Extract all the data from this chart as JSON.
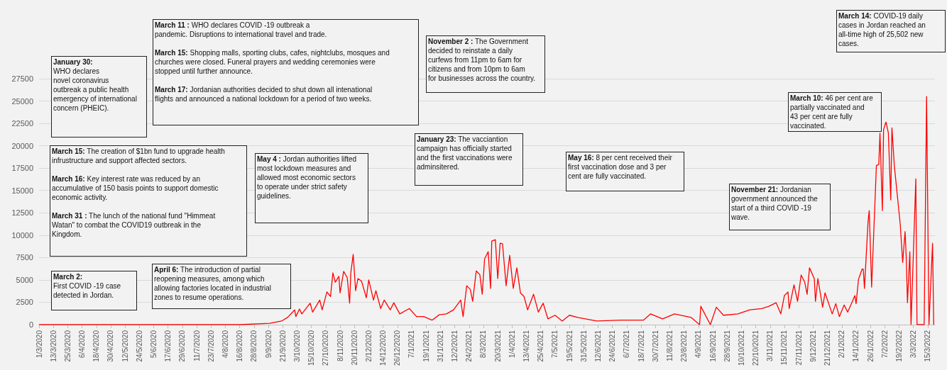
{
  "chart_data": {
    "type": "line",
    "color": "#ff0000",
    "grid": "y",
    "x": [
      "2020-03-01",
      "2020-08-16",
      "2020-09-10",
      "2020-09-20",
      "2020-09-25",
      "2020-10-01",
      "2020-10-02",
      "2020-10-05",
      "2020-10-07",
      "2020-10-14",
      "2020-10-16",
      "2020-10-22",
      "2020-10-24",
      "2020-10-28",
      "2020-10-31",
      "2020-11-02",
      "2020-11-04",
      "2020-11-07",
      "2020-11-08",
      "2020-11-11",
      "2020-11-14",
      "2020-11-16",
      "2020-11-17",
      "2020-11-19",
      "2020-11-21",
      "2020-11-23",
      "2020-11-26",
      "2020-11-30",
      "2020-12-02",
      "2020-12-06",
      "2020-12-08",
      "2020-12-12",
      "2020-12-15",
      "2020-12-20",
      "2020-12-23",
      "2020-12-28",
      "2021-01-05",
      "2021-01-11",
      "2021-01-17",
      "2021-01-24",
      "2021-01-30",
      "2021-02-05",
      "2021-02-11",
      "2021-02-17",
      "2021-02-19",
      "2021-02-22",
      "2021-02-25",
      "2021-02-27",
      "2021-03-02",
      "2021-03-05",
      "2021-03-07",
      "2021-03-09",
      "2021-03-12",
      "2021-03-14",
      "2021-03-15",
      "2021-03-18",
      "2021-03-20",
      "2021-03-22",
      "2021-03-24",
      "2021-03-27",
      "2021-03-30",
      "2021-04-02",
      "2021-04-05",
      "2021-04-08",
      "2021-04-11",
      "2021-04-14",
      "2021-04-19",
      "2021-04-23",
      "2021-04-27",
      "2021-05-01",
      "2021-05-07",
      "2021-05-13",
      "2021-05-19",
      "2021-05-26",
      "2021-06-11",
      "2021-07-01",
      "2021-07-20",
      "2021-07-26",
      "2021-08-05",
      "2021-08-15",
      "2021-08-29",
      "2021-09-05",
      "2021-09-06",
      "2021-09-14",
      "2021-09-19",
      "2021-09-25",
      "2021-10-07",
      "2021-10-17",
      "2021-10-27",
      "2021-11-02",
      "2021-11-08",
      "2021-11-12",
      "2021-11-15",
      "2021-11-18",
      "2021-11-19",
      "2021-11-23",
      "2021-11-26",
      "2021-11-29",
      "2021-12-02",
      "2021-12-04",
      "2021-12-06",
      "2021-12-10",
      "2021-12-11",
      "2021-12-13",
      "2021-12-17",
      "2021-12-19",
      "2021-12-25",
      "2021-12-28",
      "2021-12-31",
      "2022-01-04",
      "2022-01-07",
      "2022-01-13",
      "2022-01-14",
      "2022-01-16",
      "2022-01-19",
      "2022-01-20",
      "2022-01-21",
      "2022-01-24",
      "2022-01-25",
      "2022-01-27",
      "2022-01-31",
      "2022-02-02",
      "2022-02-03",
      "2022-02-05",
      "2022-02-06",
      "2022-02-08",
      "2022-02-10",
      "2022-02-12",
      "2022-02-13",
      "2022-02-15",
      "2022-02-20",
      "2022-02-22",
      "2022-02-24",
      "2022-02-25",
      "2022-02-26",
      "2022-02-28",
      "2022-03-01",
      "2022-03-05",
      "2022-03-06",
      "2022-03-12",
      "2022-03-14",
      "2022-03-16",
      "2022-03-19",
      "2022-03-20"
    ],
    "values": [
      0,
      0,
      150,
      400,
      800,
      1650,
      900,
      1750,
      1200,
      2400,
      1400,
      2750,
      1650,
      3650,
      3150,
      5800,
      4750,
      5400,
      3550,
      5950,
      5250,
      2400,
      5800,
      7850,
      3800,
      5150,
      4850,
      3000,
      5000,
      2750,
      3800,
      1800,
      2750,
      1650,
      2450,
      1200,
      1800,
      900,
      900,
      500,
      1100,
      1200,
      1650,
      2750,
      900,
      4350,
      3950,
      2600,
      6000,
      5600,
      3400,
      7350,
      8150,
      4050,
      9350,
      9500,
      5150,
      9100,
      9050,
      4350,
      7750,
      4050,
      6350,
      3550,
      3150,
      1650,
      3400,
      1400,
      2400,
      650,
      1050,
      400,
      1050,
      800,
      400,
      500,
      500,
      1200,
      650,
      1200,
      800,
      0,
      2050,
      0,
      1950,
      1050,
      1200,
      1650,
      1800,
      2050,
      2450,
      1200,
      3250,
      3650,
      1800,
      4450,
      2600,
      5550,
      4750,
      3400,
      6350,
      5150,
      2600,
      5150,
      1950,
      3550,
      1200,
      2350,
      900,
      2200,
      1400,
      3250,
      2350,
      5050,
      6200,
      6200,
      4050,
      11500,
      12750,
      4200,
      17800,
      17900,
      21400,
      12750,
      21800,
      22650,
      21450,
      13950,
      22000,
      17800,
      11150,
      6950,
      10400,
      7500,
      2450,
      8150,
      0,
      16300,
      0,
      0,
      25502,
      0,
      9100,
      0
    ],
    "xlim": [
      "2020-03-01",
      "2022-03-21"
    ],
    "xticks": [
      {
        "value": "2020-03-01",
        "label": "1/3/2020"
      },
      {
        "value": "2020-03-13",
        "label": "13/3/2020"
      },
      {
        "value": "2020-03-25",
        "label": "25/3/2020"
      },
      {
        "value": "2020-04-06",
        "label": "6/4/2020"
      },
      {
        "value": "2020-04-18",
        "label": "18/4/2020"
      },
      {
        "value": "2020-04-30",
        "label": "30/4/2020"
      },
      {
        "value": "2020-05-12",
        "label": "12/5/2020"
      },
      {
        "value": "2020-05-24",
        "label": "24/5/2020"
      },
      {
        "value": "2020-06-05",
        "label": "5/6/2020"
      },
      {
        "value": "2020-06-17",
        "label": "17/6/2020"
      },
      {
        "value": "2020-06-29",
        "label": "29/6/2020"
      },
      {
        "value": "2020-07-11",
        "label": "11/7/2020"
      },
      {
        "value": "2020-07-23",
        "label": "23/7/2020"
      },
      {
        "value": "2020-08-04",
        "label": "4/8/2020"
      },
      {
        "value": "2020-08-16",
        "label": "16/8/2020"
      },
      {
        "value": "2020-08-28",
        "label": "28/8/2020"
      },
      {
        "value": "2020-09-09",
        "label": "9/9/2020"
      },
      {
        "value": "2020-09-21",
        "label": "21/9/2020"
      },
      {
        "value": "2020-10-03",
        "label": "3/10/2020"
      },
      {
        "value": "2020-10-15",
        "label": "15/10/2020"
      },
      {
        "value": "2020-10-27",
        "label": "27/10/2020"
      },
      {
        "value": "2020-11-08",
        "label": "8/11/2020"
      },
      {
        "value": "2020-11-20",
        "label": "20/11/2020"
      },
      {
        "value": "2020-12-02",
        "label": "2/12/2020"
      },
      {
        "value": "2020-12-14",
        "label": "14/12/2020"
      },
      {
        "value": "2020-12-26",
        "label": "26/12/2020"
      },
      {
        "value": "2021-01-07",
        "label": "7/1/2021"
      },
      {
        "value": "2021-01-19",
        "label": "19/1/2021"
      },
      {
        "value": "2021-01-31",
        "label": "31/1/2021"
      },
      {
        "value": "2021-02-12",
        "label": "12/2/2021"
      },
      {
        "value": "2021-02-24",
        "label": "24/2/2021"
      },
      {
        "value": "2021-03-08",
        "label": "8/3/2021"
      },
      {
        "value": "2021-03-20",
        "label": "20/3/2021"
      },
      {
        "value": "2021-04-01",
        "label": "1/4/2021"
      },
      {
        "value": "2021-04-13",
        "label": "13/4/2021"
      },
      {
        "value": "2021-04-25",
        "label": "25/4/2021"
      },
      {
        "value": "2021-05-07",
        "label": "7/5/2021"
      },
      {
        "value": "2021-05-19",
        "label": "19/5/2021"
      },
      {
        "value": "2021-05-31",
        "label": "31/5/2021"
      },
      {
        "value": "2021-06-12",
        "label": "12/6/2021"
      },
      {
        "value": "2021-06-24",
        "label": "24/6/2021"
      },
      {
        "value": "2021-07-06",
        "label": "6/7/2021"
      },
      {
        "value": "2021-07-18",
        "label": "18/7/2021"
      },
      {
        "value": "2021-07-30",
        "label": "30/7/2021"
      },
      {
        "value": "2021-08-11",
        "label": "11/8/2021"
      },
      {
        "value": "2021-08-23",
        "label": "23/8/2021"
      },
      {
        "value": "2021-09-04",
        "label": "4/9/2021"
      },
      {
        "value": "2021-09-16",
        "label": "16/9/2021"
      },
      {
        "value": "2021-09-28",
        "label": "28/9/2021"
      },
      {
        "value": "2021-10-10",
        "label": "10/10/2021"
      },
      {
        "value": "2021-10-22",
        "label": "22/10/2021"
      },
      {
        "value": "2021-11-03",
        "label": "3/11/2021"
      },
      {
        "value": "2021-11-15",
        "label": "15/11/2021"
      },
      {
        "value": "2021-11-27",
        "label": "27/11/2021"
      },
      {
        "value": "2021-12-09",
        "label": "9/12/2021"
      },
      {
        "value": "2021-12-21",
        "label": "21/12/2021"
      },
      {
        "value": "2022-01-02",
        "label": "2/1/2022"
      },
      {
        "value": "2022-01-14",
        "label": "14/1/2022"
      },
      {
        "value": "2022-01-26",
        "label": "26/1/2022"
      },
      {
        "value": "2022-02-07",
        "label": "7/2/2022"
      },
      {
        "value": "2022-02-19",
        "label": "19/2/2022"
      },
      {
        "value": "2022-03-03",
        "label": "3/3/2022"
      },
      {
        "value": "2022-03-15",
        "label": "15/3/2022"
      }
    ],
    "ylim": [
      0,
      27500
    ],
    "yticks": [
      0,
      2500,
      5000,
      7500,
      10000,
      12500,
      15000,
      17500,
      20000,
      22500,
      25000,
      27500
    ],
    "annotations": [
      "January 30:\nWHO declares\nnovel coronavirus\noutbreak a public health\nemergency of international\nconcern (PHEIC).",
      "March 11 : WHO declares COVID -19 outbreak a\npandemic. Disruptions to international travel and trade.\n\nMarch 15: Shopping malls, sporting clubs, cafes, nightclubs, mosques and\nchurches were closed. Funeral prayers and wedding ceremonies were\nstopped until further announce.\n\nMarch 17: Jordanian authorities decided to shut down all intenational\nflights and announced a national lockdown for a period of two weeks.",
      "November 2 : The Government\ndecided to reinstate a daily\ncurfews from 11pm to 6am for\ncitizens and from 10pm to 6am\nfor businesses across the country.",
      "March 14: COVID-19 daily\ncases in Jordan reached an\nall-time high of 25,502 new\ncases.",
      "March 10: 46 per cent are\npartially vaccinated and\n43 per cent are fully\nvaccinated.",
      "March 15: The creation of $1bn fund to upgrade health\ninfrustructure and support affected sectors.\n\nMarch 16: Key interest rate was reduced by an\naccumulative of 150 basis points to support domestic\neconomic activity.\n\nMarch 31 : The lunch of the national fund \"Himmeat\nWatan\" to combat the COVID19 outbreak in the\nKingdom.",
      "May 4 : Jordan authorities lifted\nmost lockdown measures and\nallowed most economic sectors\nto operate under strict safety\nguidelines.",
      "January 23: The vacciantion\ncampaign has officially started\nand the first vaccinations were\nadminsitered.",
      "May 16: 8 per cent received their\nfirst vaccination dose and 3 per\ncent are fully vaccinated.",
      "November 21: Jordanian\ngovernment announced the\nstart of a third COVID -19\nwave.",
      "March 2:\nFirst COVID -19 case\ndetected in Jordan.",
      "April 6: The introduction of partial\nreopening measures, among which\nallowing factories located in industrial\nzones to resume operations."
    ]
  }
}
